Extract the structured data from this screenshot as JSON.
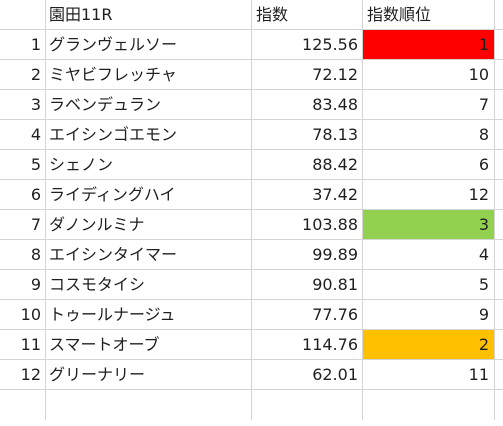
{
  "header": {
    "race": "園田11R",
    "index_label": "指数",
    "rank_label": "指数順位"
  },
  "rows": [
    {
      "num": "1",
      "name": "グランヴェルソー",
      "index": "125.56",
      "rank": "1",
      "highlight": "#ff0000"
    },
    {
      "num": "2",
      "name": "ミヤビフレッチャ",
      "index": "72.12",
      "rank": "10",
      "highlight": ""
    },
    {
      "num": "3",
      "name": "ラベンデュラン",
      "index": "83.48",
      "rank": "7",
      "highlight": ""
    },
    {
      "num": "4",
      "name": "エイシンゴエモン",
      "index": "78.13",
      "rank": "8",
      "highlight": ""
    },
    {
      "num": "5",
      "name": "シェノン",
      "index": "88.42",
      "rank": "6",
      "highlight": ""
    },
    {
      "num": "6",
      "name": "ライディングハイ",
      "index": "37.42",
      "rank": "12",
      "highlight": ""
    },
    {
      "num": "7",
      "name": "ダノンルミナ",
      "index": "103.88",
      "rank": "3",
      "highlight": "#92d050"
    },
    {
      "num": "8",
      "name": "エイシンタイマー",
      "index": "99.89",
      "rank": "4",
      "highlight": ""
    },
    {
      "num": "9",
      "name": "コスモタイシ",
      "index": "90.81",
      "rank": "5",
      "highlight": ""
    },
    {
      "num": "10",
      "name": "トゥールナージュ",
      "index": "77.76",
      "rank": "9",
      "highlight": ""
    },
    {
      "num": "11",
      "name": "スマートオーブ",
      "index": "114.76",
      "rank": "2",
      "highlight": "#ffc000"
    },
    {
      "num": "12",
      "name": "グリーナリー",
      "index": "62.01",
      "rank": "11",
      "highlight": ""
    }
  ]
}
